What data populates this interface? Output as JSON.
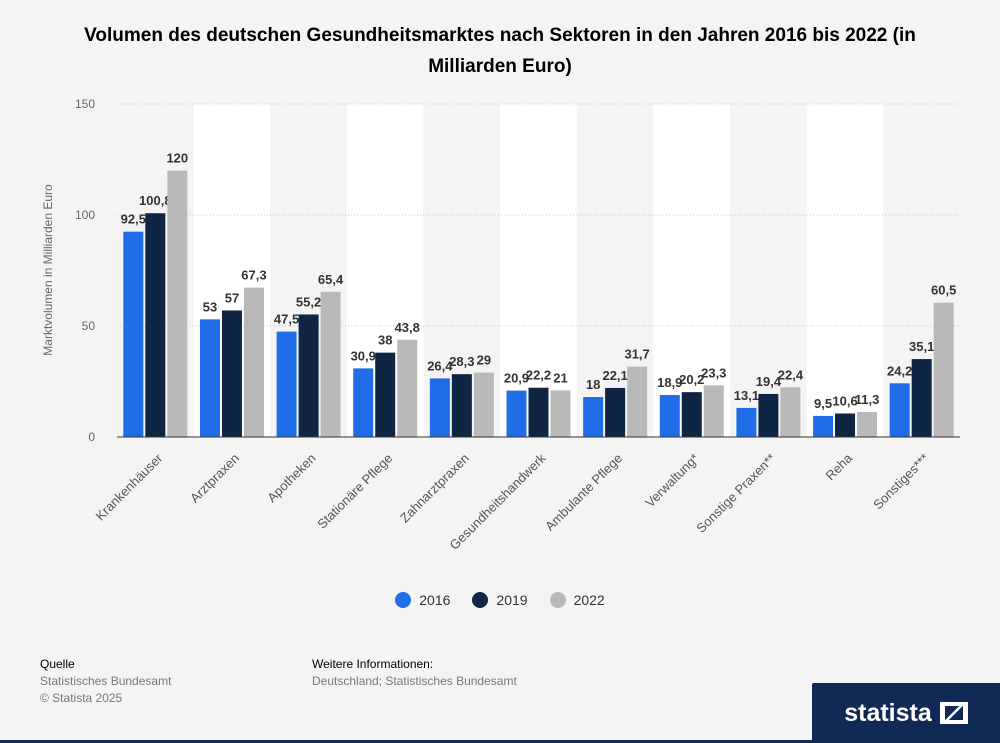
{
  "chart_data": {
    "type": "bar",
    "title": "Volumen des deutschen Gesundheitsmarktes nach Sektoren in den Jahren 2016 bis 2022 (in Milliarden Euro)",
    "xlabel": "",
    "ylabel": "Marktvolumen in Milliarden Euro",
    "ylim": [
      0,
      150
    ],
    "yticks": [
      "0",
      "50",
      "100",
      "150"
    ],
    "categories": [
      "Krankenhäuser",
      "Arztpraxen",
      "Apotheken",
      "Stationäre Pflege",
      "Zahnarztpraxen",
      "Gesundheitshandwerk",
      "Ambulante Pflege",
      "Verwaltung*",
      "Sonstige Praxen**",
      "Reha",
      "Sonstiges***"
    ],
    "series": [
      {
        "name": "2016",
        "color": "#1f6ee8",
        "values": [
          92.5,
          53,
          47.5,
          30.9,
          26.4,
          20.9,
          18,
          18.9,
          13.1,
          9.5,
          24.2
        ],
        "labels": [
          "92,5",
          "53",
          "47,5",
          "30,9",
          "26,4",
          "20,9",
          "18",
          "18,9",
          "13,1",
          "9,5",
          "24,2"
        ]
      },
      {
        "name": "2019",
        "color": "#0f2544",
        "values": [
          100.8,
          57,
          55.2,
          38,
          28.3,
          22.2,
          22.1,
          20.2,
          19.4,
          10.6,
          35.1
        ],
        "labels": [
          "100,8",
          "57",
          "55,2",
          "38",
          "28,3",
          "22,2",
          "22,1",
          "20,2",
          "19,4",
          "10,6",
          "35,1"
        ]
      },
      {
        "name": "2022",
        "color": "#b9b9b9",
        "values": [
          120,
          67.3,
          65.4,
          43.8,
          29,
          21,
          31.7,
          23.3,
          22.4,
          11.3,
          60.5
        ],
        "labels": [
          "120",
          "67,3",
          "65,4",
          "43,8",
          "29",
          "21",
          "31,7",
          "23,3",
          "22,4",
          "11,3",
          "60,5"
        ]
      }
    ],
    "grid": true,
    "legend": "bottom"
  },
  "footer": {
    "source_heading": "Quelle",
    "source_name": "Statistisches Bundesamt",
    "copyright": "© Statista 2025",
    "info_heading": "Weitere Informationen:",
    "info_text": "Deutschland; Statistisches Bundesamt"
  },
  "brand": {
    "name": "statista"
  }
}
